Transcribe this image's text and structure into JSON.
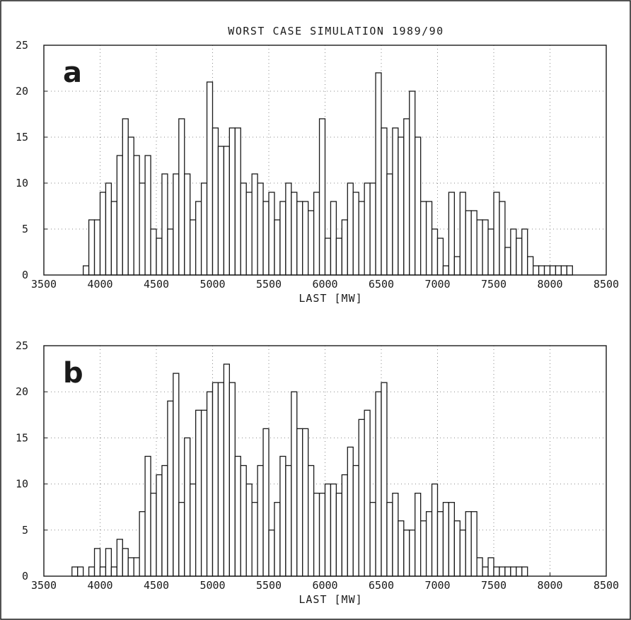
{
  "chart_data": [
    {
      "type": "bar",
      "title": "WORST CASE SIMULATION 1989/90",
      "panel_label": "a",
      "xlabel": "LAST [MW]",
      "ylabel": "",
      "xlim": [
        3500,
        8500
      ],
      "ylim": [
        0,
        25
      ],
      "x_ticks": [
        "3500",
        "4000",
        "4500",
        "5000",
        "5500",
        "6000",
        "6500",
        "7000",
        "7500",
        "8000",
        "8500"
      ],
      "y_ticks": [
        "0",
        "5",
        "10",
        "15",
        "20",
        "25"
      ],
      "grid": true,
      "bin_width": 50,
      "bin_start": 3850,
      "values": [
        1,
        6,
        6,
        9,
        10,
        8,
        13,
        17,
        15,
        13,
        10,
        13,
        5,
        4,
        11,
        5,
        11,
        17,
        11,
        6,
        8,
        10,
        21,
        16,
        14,
        14,
        16,
        16,
        10,
        9,
        11,
        10,
        8,
        9,
        6,
        8,
        10,
        9,
        8,
        8,
        7,
        9,
        17,
        4,
        8,
        4,
        6,
        10,
        9,
        8,
        10,
        10,
        22,
        16,
        11,
        16,
        15,
        17,
        20,
        15,
        8,
        8,
        5,
        4,
        1,
        9,
        2,
        9,
        7,
        7,
        6,
        6,
        5,
        9,
        8,
        3,
        5,
        4,
        5,
        2,
        1,
        1,
        1,
        1,
        1,
        1,
        1
      ]
    },
    {
      "type": "bar",
      "title": "",
      "panel_label": "b",
      "xlabel": "LAST [MW]",
      "ylabel": "",
      "xlim": [
        3500,
        8500
      ],
      "ylim": [
        0,
        25
      ],
      "x_ticks": [
        "3500",
        "4000",
        "4500",
        "5000",
        "5500",
        "6000",
        "6500",
        "7000",
        "7500",
        "8000",
        "8500"
      ],
      "y_ticks": [
        "0",
        "5",
        "10",
        "15",
        "20",
        "25"
      ],
      "grid": true,
      "bin_width": 50,
      "bin_start": 3750,
      "values": [
        1,
        1,
        0,
        1,
        3,
        1,
        3,
        1,
        4,
        3,
        2,
        2,
        7,
        13,
        9,
        11,
        12,
        19,
        22,
        8,
        15,
        10,
        18,
        18,
        20,
        21,
        21,
        23,
        21,
        13,
        12,
        10,
        8,
        12,
        16,
        5,
        8,
        13,
        12,
        20,
        16,
        16,
        12,
        9,
        9,
        10,
        10,
        9,
        11,
        14,
        12,
        17,
        18,
        8,
        20,
        21,
        8,
        9,
        6,
        5,
        5,
        9,
        6,
        7,
        10,
        7,
        8,
        8,
        6,
        5,
        7,
        7,
        2,
        1,
        2,
        1,
        1,
        1,
        1,
        1,
        1
      ]
    }
  ]
}
